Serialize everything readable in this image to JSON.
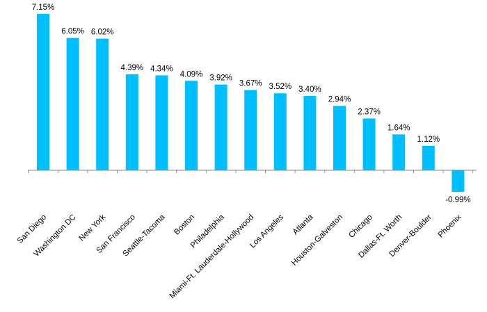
{
  "colors": {
    "bar": "#00BFFF",
    "axis": "#888888",
    "text": "#000000"
  },
  "chart_data": {
    "type": "bar",
    "title": "",
    "xlabel": "",
    "ylabel": "",
    "grid": false,
    "legend": "none",
    "ylim": [
      -1.5,
      7.15
    ],
    "categories": [
      "San Diego",
      "Washington DC",
      "New York",
      "San Francisco",
      "Seattle-Tacoma",
      "Boston",
      "Philadelphia",
      "Miami-Ft. Lauderdale-Hollywood",
      "Los Angeles",
      "Atlanta",
      "Houston-Galveston",
      "Chicago",
      "Dallas-Ft. Worth",
      "Denver-Boulder",
      "Phoenix"
    ],
    "values": [
      7.15,
      6.05,
      6.02,
      4.39,
      4.34,
      4.09,
      3.92,
      3.67,
      3.52,
      3.4,
      2.94,
      2.37,
      1.64,
      1.12,
      -0.99
    ],
    "data_labels": [
      "7.15%",
      "6.05%",
      "6.02%",
      "4.39%",
      "4.34%",
      "4.09%",
      "3.92%",
      "3.67%",
      "3.52%",
      "3.40%",
      "2.94%",
      "2.37%",
      "1.64%",
      "1.12%",
      "-0.99%"
    ]
  }
}
